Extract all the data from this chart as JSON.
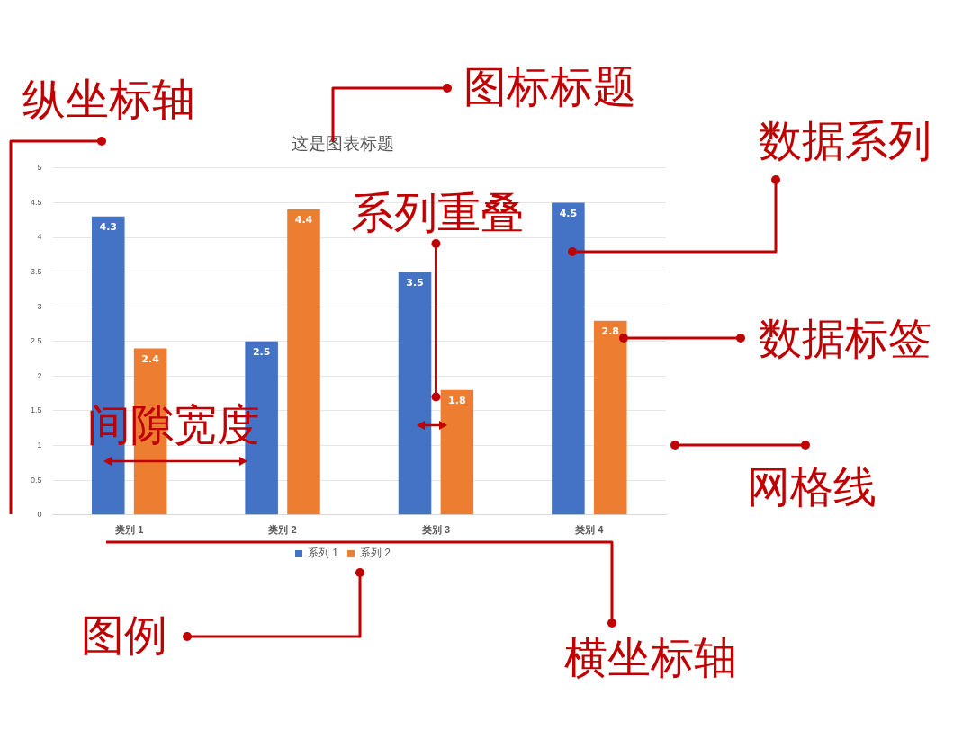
{
  "chart_data": {
    "type": "bar",
    "title": "这是图表标题",
    "categories": [
      "类别 1",
      "类别 2",
      "类别 3",
      "类别 4"
    ],
    "series": [
      {
        "name": "系列 1",
        "color": "#4472c4",
        "values": [
          4.3,
          2.5,
          3.5,
          4.5
        ]
      },
      {
        "name": "系列 2",
        "color": "#ed7d31",
        "values": [
          2.4,
          4.4,
          1.8,
          2.8
        ]
      }
    ],
    "ylim": [
      0,
      5
    ],
    "yticks": [
      0,
      0.5,
      1,
      1.5,
      2,
      2.5,
      3,
      3.5,
      4,
      4.5,
      5
    ],
    "grid": "y",
    "legend": "bottom",
    "data_labels": true,
    "annotations": [
      "纵坐标轴",
      "图标标题",
      "数据系列",
      {
        "text": "系列重叠",
        "x": "类别 3",
        "y": 1.7
      },
      "数据标签",
      "间隙宽度",
      "网格线",
      "图例",
      "横坐标轴"
    ]
  }
}
